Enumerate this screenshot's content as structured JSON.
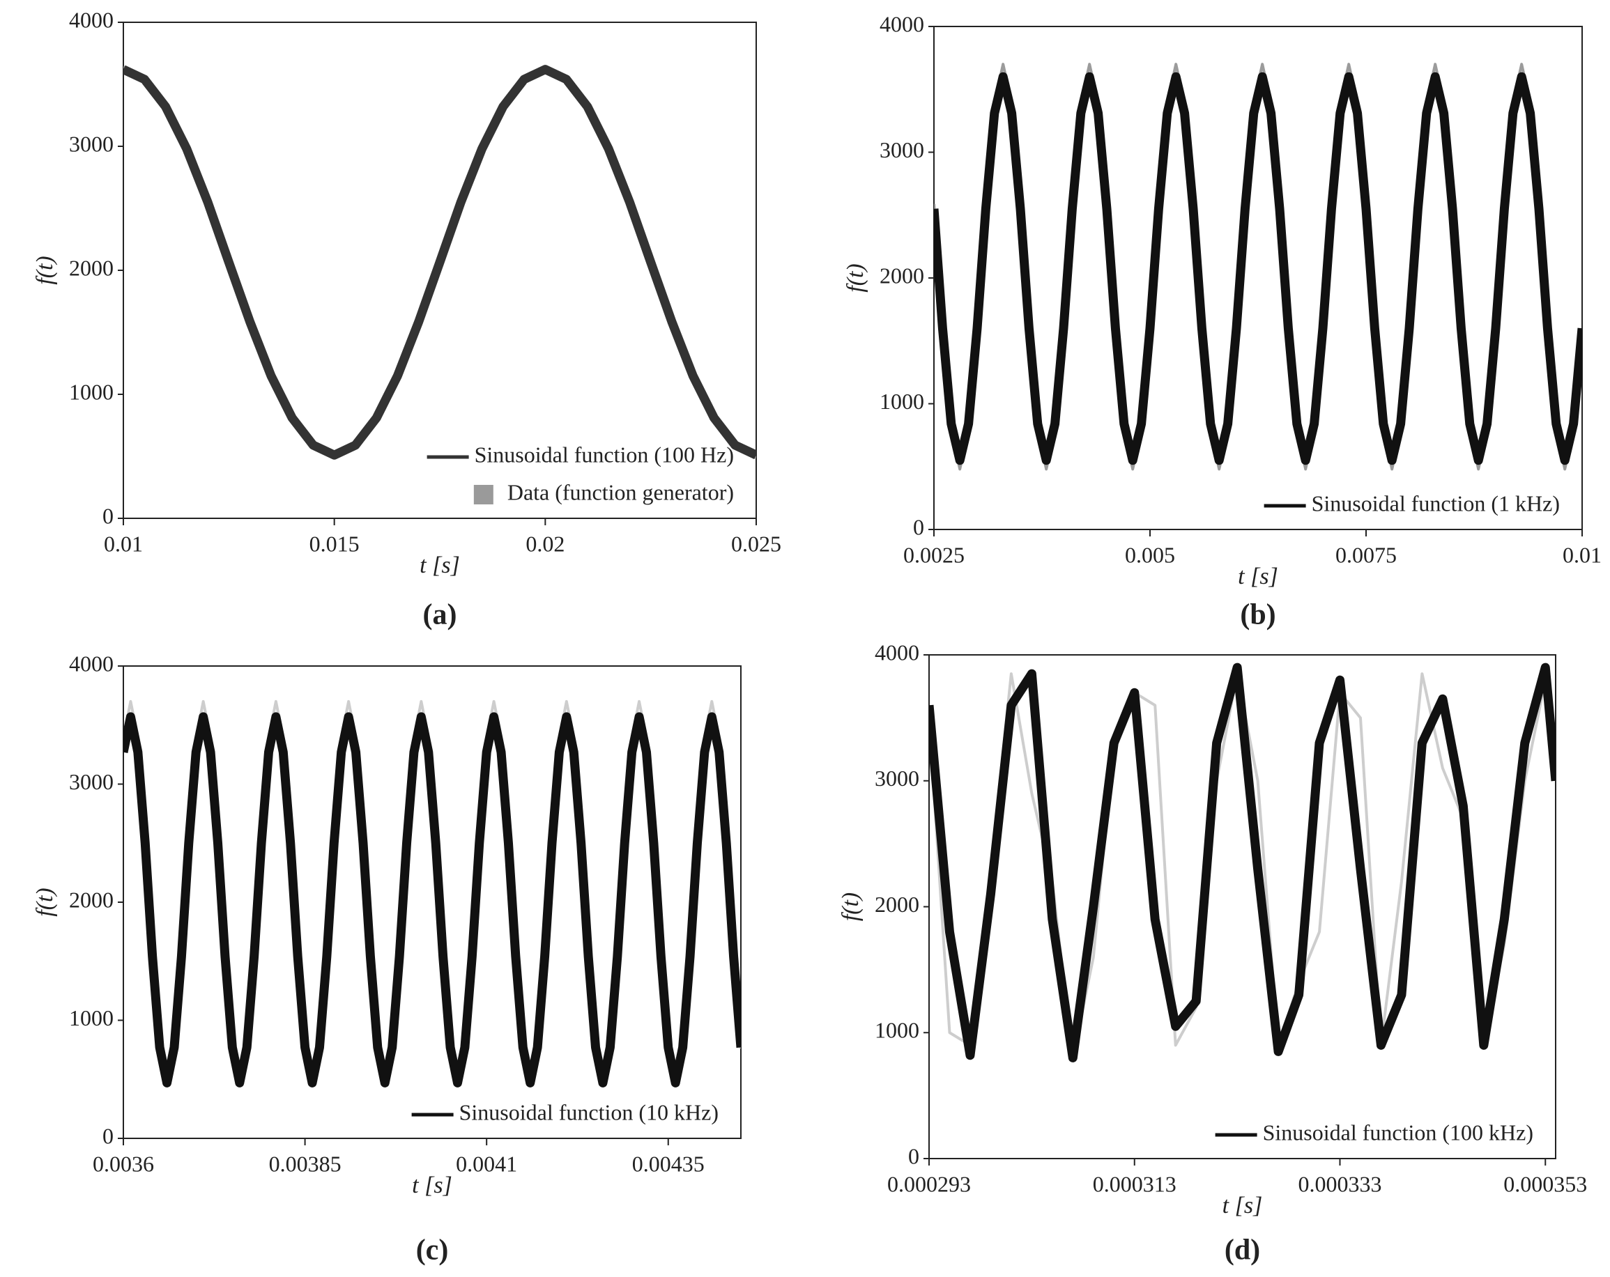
{
  "chart_data": [
    {
      "type": "line",
      "label": "(a)",
      "xlabel": "t [s]",
      "ylabel": "f(t)",
      "legend": "lower right",
      "x": [
        0.01,
        0.0105,
        0.011,
        0.0115,
        0.012,
        0.0125,
        0.013,
        0.0135,
        0.014,
        0.0145,
        0.015,
        0.0155,
        0.016,
        0.0165,
        0.017,
        0.0175,
        0.018,
        0.0185,
        0.019,
        0.0195,
        0.02,
        0.0205,
        0.021,
        0.0215,
        0.022,
        0.0225,
        0.023,
        0.0235,
        0.024,
        0.0245,
        0.025
      ],
      "series": [
        {
          "name": "Sinusoidal function (100 Hz)",
          "color": "#333333",
          "values": [
            3620,
            3540,
            3320,
            2980,
            2550,
            2065,
            1585,
            1150,
            810,
            590,
            510,
            590,
            810,
            1150,
            1585,
            2065,
            2550,
            2980,
            3320,
            3540,
            3620,
            3540,
            3320,
            2980,
            2550,
            2065,
            1585,
            1150,
            810,
            590,
            510
          ]
        },
        {
          "name": "Data (function generator)",
          "color": "#9a9a9a",
          "values": [
            3640,
            3560,
            3340,
            2990,
            2550,
            2060,
            1570,
            1130,
            790,
            570,
            490,
            570,
            790,
            1130,
            1570,
            2060,
            2550,
            2990,
            3340,
            3560,
            3640,
            3560,
            3340,
            2990,
            2550,
            2060,
            1570,
            1130,
            790,
            570,
            490
          ]
        }
      ],
      "xlim": [
        0.01,
        0.025
      ],
      "xticks": [
        0.01,
        0.015,
        0.02,
        0.025
      ],
      "ylim": [
        0,
        4000
      ],
      "yticks": [
        0,
        1000,
        2000,
        3000,
        4000
      ]
    },
    {
      "type": "line",
      "label": "(b)",
      "xlabel": "t [s]",
      "ylabel": "f(t)",
      "legend": "lower right",
      "x": [
        0.0025,
        0.0026,
        0.0027,
        0.0028,
        0.0029,
        0.003,
        0.0031,
        0.0032,
        0.0033,
        0.0034,
        0.0035,
        0.0036,
        0.0037,
        0.0038,
        0.0039,
        0.004,
        0.0041,
        0.0042,
        0.0043,
        0.0044,
        0.0045,
        0.0046,
        0.0047,
        0.0048,
        0.0049,
        0.005,
        0.0051,
        0.0052,
        0.0053,
        0.0054,
        0.0055,
        0.0056,
        0.0057,
        0.0058,
        0.0059,
        0.006,
        0.0061,
        0.0062,
        0.0063,
        0.0064,
        0.0065,
        0.0066,
        0.0067,
        0.0068,
        0.0069,
        0.007,
        0.0071,
        0.0072,
        0.0073,
        0.0074,
        0.0075,
        0.0076,
        0.0077,
        0.0078,
        0.0079,
        0.008,
        0.0081,
        0.0082,
        0.0083,
        0.0084,
        0.0085,
        0.0086,
        0.0087,
        0.0088,
        0.0089,
        0.009,
        0.0091,
        0.0092,
        0.0093,
        0.0094,
        0.0095,
        0.0096,
        0.0097,
        0.0098,
        0.0099,
        0.01
      ],
      "series": [
        {
          "name": "Sinusoidal function (1 kHz)",
          "color": "#111111",
          "values": [
            2550,
            1600,
            840,
            550,
            840,
            1600,
            2550,
            3310,
            3600,
            3310,
            2550,
            1600,
            840,
            550,
            840,
            1600,
            2550,
            3310,
            3600,
            3310,
            2550,
            1600,
            840,
            550,
            840,
            1600,
            2550,
            3310,
            3600,
            3310,
            2550,
            1600,
            840,
            550,
            840,
            1600,
            2550,
            3310,
            3600,
            3310,
            2550,
            1600,
            840,
            550,
            840,
            1600,
            2550,
            3310,
            3600,
            3310,
            2550,
            1600,
            840,
            550,
            840,
            1600,
            2550,
            3310,
            3600,
            3310,
            2550,
            1600,
            840,
            550,
            840,
            1600,
            2550,
            3310,
            3600,
            3310,
            2550,
            1600,
            840,
            550,
            840,
            1600
          ]
        },
        {
          "color": "#8a8a8a",
          "values": [
            2590,
            1590,
            790,
            480,
            790,
            1590,
            2590,
            3390,
            3700,
            3390,
            2590,
            1590,
            790,
            480,
            790,
            1590,
            2590,
            3390,
            3700,
            3390,
            2590,
            1590,
            790,
            480,
            790,
            1590,
            2590,
            3390,
            3700,
            3390,
            2590,
            1590,
            790,
            480,
            790,
            1590,
            2590,
            3390,
            3700,
            3390,
            2590,
            1590,
            790,
            480,
            790,
            1590,
            2590,
            3390,
            3700,
            3390,
            2590,
            1590,
            790,
            480,
            790,
            1590,
            2590,
            3390,
            3700,
            3390,
            2590,
            1590,
            790,
            480,
            790,
            1590,
            2590,
            3390,
            3700,
            3390,
            2590,
            1590,
            790,
            480,
            790,
            1590
          ]
        }
      ],
      "xlim": [
        0.0025,
        0.01
      ],
      "xticks": [
        0.0025,
        0.005,
        0.0075,
        0.01
      ],
      "ylim": [
        0,
        4000
      ],
      "yticks": [
        0,
        1000,
        2000,
        3000,
        4000
      ]
    },
    {
      "type": "line",
      "label": "(c)",
      "xlabel": "t [s]",
      "ylabel": "f(t)",
      "legend": "lower right",
      "x": [
        0.0036,
        0.00361,
        0.00362,
        0.00363,
        0.00364,
        0.00365,
        0.00366,
        0.00367,
        0.00368,
        0.00369,
        0.0037,
        0.00371,
        0.00372,
        0.00373,
        0.00374,
        0.00375,
        0.00376,
        0.00377,
        0.00378,
        0.00379,
        0.0038,
        0.00381,
        0.00382,
        0.00383,
        0.00384,
        0.00385,
        0.00386,
        0.00387,
        0.00388,
        0.00389,
        0.0039,
        0.00391,
        0.00392,
        0.00393,
        0.00394,
        0.00395,
        0.00396,
        0.00397,
        0.00398,
        0.00399,
        0.004,
        0.00401,
        0.00402,
        0.00403,
        0.00404,
        0.00405,
        0.00406,
        0.00407,
        0.00408,
        0.00409,
        0.0041,
        0.00411,
        0.00412,
        0.00413,
        0.00414,
        0.00415,
        0.00416,
        0.00417,
        0.00418,
        0.00419,
        0.0042,
        0.00421,
        0.00422,
        0.00423,
        0.00424,
        0.00425,
        0.00426,
        0.00427,
        0.00428,
        0.00429,
        0.0043,
        0.00431,
        0.00432,
        0.00433,
        0.00434,
        0.00435,
        0.00436,
        0.00437,
        0.00438,
        0.00439,
        0.0044,
        0.00441,
        0.00442,
        0.00443,
        0.00444,
        0.00445
      ],
      "series": [
        {
          "name": "Sinusoidal function (10 kHz)",
          "color": "#111111",
          "values": [
            3270,
            3570,
            3270,
            2500,
            1540,
            770,
            470,
            770,
            1540,
            2500,
            3270,
            3570,
            3270,
            2500,
            1540,
            770,
            470,
            770,
            1540,
            2500,
            3270,
            3570,
            3270,
            2500,
            1540,
            770,
            470,
            770,
            1540,
            2500,
            3270,
            3570,
            3270,
            2500,
            1540,
            770,
            470,
            770,
            1540,
            2500,
            3270,
            3570,
            3270,
            2500,
            1540,
            770,
            470,
            770,
            1540,
            2500,
            3270,
            3570,
            3270,
            2500,
            1540,
            770,
            470,
            770,
            1540,
            2500,
            3270,
            3570,
            3270,
            2500,
            1540,
            770,
            470,
            770,
            1540,
            2500,
            3270,
            3570,
            3270,
            2500,
            1540,
            770,
            470,
            770,
            1540,
            2500,
            3270,
            3570,
            3270,
            2500,
            1540,
            770
          ]
        },
        {
          "color": "#c4c4c4",
          "values": [
            3390,
            3700,
            3390,
            2580,
            1570,
            760,
            450,
            760,
            1570,
            2580,
            3390,
            3700,
            3390,
            2580,
            1570,
            760,
            450,
            760,
            1570,
            2580,
            3390,
            3700,
            3390,
            2580,
            1570,
            760,
            450,
            760,
            1570,
            2580,
            3390,
            3700,
            3390,
            2580,
            1570,
            760,
            450,
            760,
            1570,
            2580,
            3390,
            3700,
            3390,
            2580,
            1570,
            760,
            450,
            760,
            1570,
            2580,
            3390,
            3700,
            3390,
            2580,
            1570,
            760,
            450,
            760,
            1570,
            2580,
            3390,
            3700,
            3390,
            2580,
            1570,
            760,
            450,
            760,
            1570,
            2580,
            3390,
            3700,
            3390,
            2580,
            1570,
            760,
            450,
            760,
            1570,
            2580,
            3390,
            3700,
            3390,
            2580,
            1570,
            760
          ]
        }
      ],
      "xlim": [
        0.0036,
        0.00445
      ],
      "xticks": [
        0.0036,
        0.00385,
        0.0041,
        0.00435
      ],
      "ylim": [
        0,
        4000
      ],
      "yticks": [
        0,
        1000,
        2000,
        3000,
        4000
      ]
    },
    {
      "type": "line",
      "label": "(d)",
      "xlabel": "t [s]",
      "ylabel": "f(t)",
      "legend": "lower right",
      "x": [
        0.000293,
        0.000295,
        0.000297,
        0.000299,
        0.000301,
        0.000303,
        0.000305,
        0.000307,
        0.000309,
        0.000311,
        0.000313,
        0.000315,
        0.000317,
        0.000319,
        0.000321,
        0.000323,
        0.000325,
        0.000327,
        0.000329,
        0.000331,
        0.000333,
        0.000335,
        0.000337,
        0.000339,
        0.000341,
        0.000343,
        0.000345,
        0.000347,
        0.000349,
        0.000351,
        0.000353,
        0.000354
      ],
      "series": [
        {
          "name": "Sinusoidal function (100 kHz)",
          "color": "#111111",
          "values": [
            3600,
            1800,
            820,
            2100,
            3600,
            3850,
            1900,
            800,
            2000,
            3300,
            3700,
            1900,
            1050,
            1250,
            3300,
            3900,
            2300,
            850,
            1300,
            3300,
            3800,
            2300,
            900,
            1300,
            3300,
            3650,
            2800,
            900,
            1900,
            3300,
            3900,
            3000
          ]
        },
        {
          "color": "#c4c4c4",
          "values": [
            3500,
            1000,
            900,
            2300,
            3850,
            2900,
            2200,
            800,
            1600,
            3300,
            3700,
            3600,
            900,
            1200,
            3000,
            3850,
            3000,
            900,
            1400,
            1800,
            3700,
            3500,
            900,
            2200,
            3850,
            3100,
            2700,
            900,
            1700,
            3000,
            3800,
            3000
          ]
        }
      ],
      "xlim": [
        0.000293,
        0.000354
      ],
      "xticks": [
        0.000293,
        0.000313,
        0.000333,
        0.000353
      ],
      "ylim": [
        0,
        4000
      ],
      "yticks": [
        0,
        1000,
        2000,
        3000,
        4000
      ]
    }
  ]
}
